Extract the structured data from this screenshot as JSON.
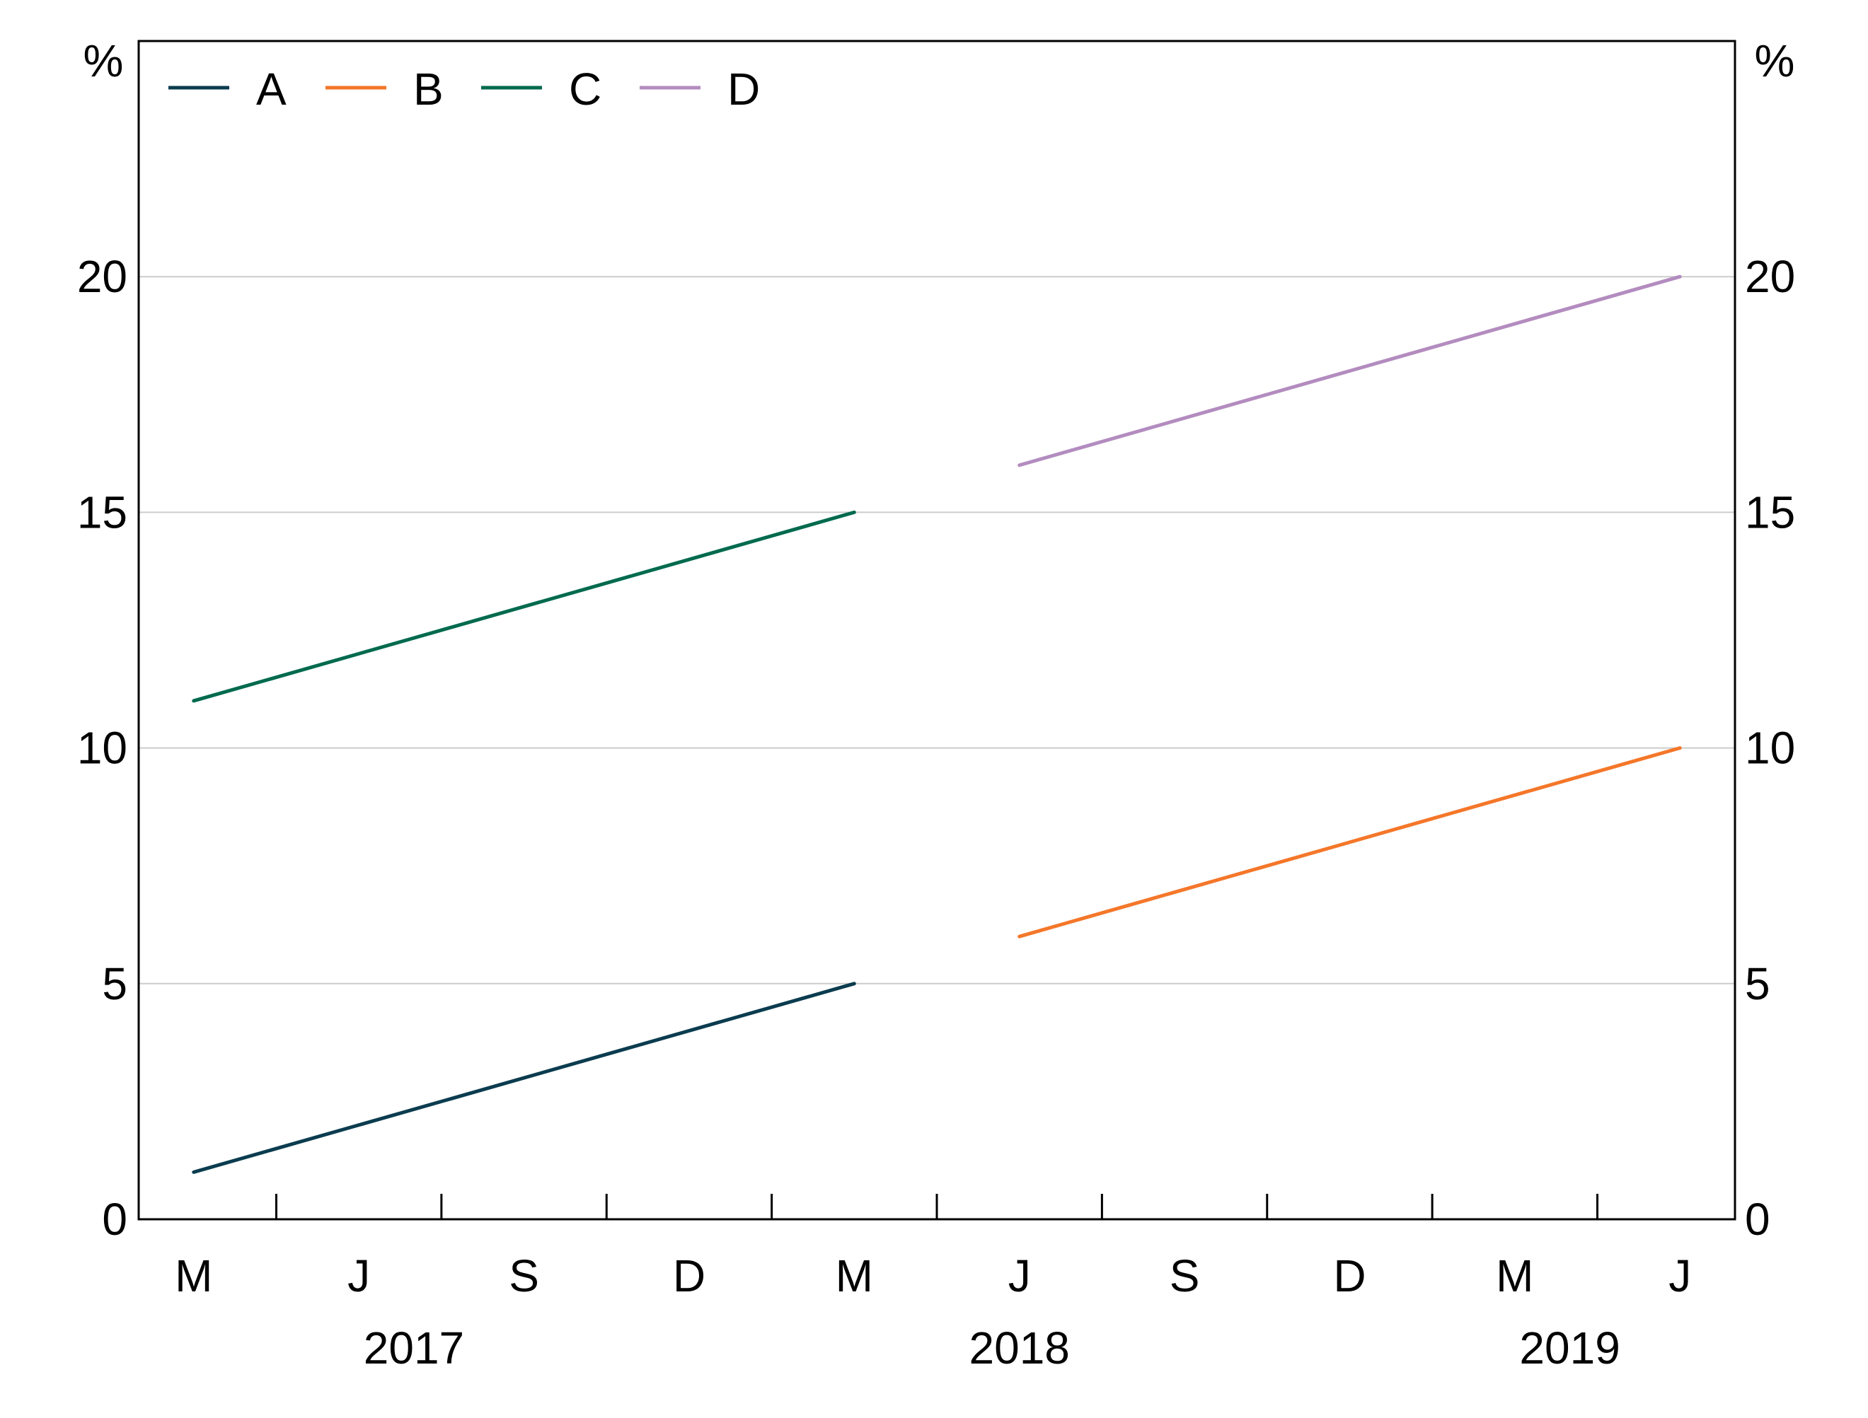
{
  "chart_data": {
    "type": "line",
    "y_unit_left": "%",
    "y_unit_right": "%",
    "ylim": [
      0,
      25
    ],
    "yticks": [
      0,
      5,
      10,
      15,
      20
    ],
    "grid": "horizontal",
    "legend_position": "top-left",
    "x_month_labels": [
      {
        "date": "2017-03",
        "label": "M"
      },
      {
        "date": "2017-06",
        "label": "J"
      },
      {
        "date": "2017-09",
        "label": "S"
      },
      {
        "date": "2017-12",
        "label": "D"
      },
      {
        "date": "2018-03",
        "label": "M"
      },
      {
        "date": "2018-06",
        "label": "J"
      },
      {
        "date": "2018-09",
        "label": "S"
      },
      {
        "date": "2018-12",
        "label": "D"
      },
      {
        "date": "2019-03",
        "label": "M"
      },
      {
        "date": "2019-06",
        "label": "J"
      }
    ],
    "x_year_labels": [
      {
        "label": "2017",
        "center_date": "2017-07"
      },
      {
        "label": "2018",
        "center_date": "2018-06"
      },
      {
        "label": "2019",
        "center_date": "2019-04"
      }
    ],
    "xlim": [
      "2017-02",
      "2019-07"
    ],
    "series": [
      {
        "name": "A",
        "color": "#0b3c4f",
        "points": [
          {
            "x": "2017-03",
            "y": 1
          },
          {
            "x": "2018-03",
            "y": 5
          }
        ]
      },
      {
        "name": "B",
        "color": "#f4772a",
        "points": [
          {
            "x": "2018-06",
            "y": 6
          },
          {
            "x": "2019-06",
            "y": 10
          }
        ]
      },
      {
        "name": "C",
        "color": "#006a4e",
        "points": [
          {
            "x": "2017-03",
            "y": 11
          },
          {
            "x": "2018-03",
            "y": 15
          }
        ]
      },
      {
        "name": "D",
        "color": "#b38cbf",
        "points": [
          {
            "x": "2018-06",
            "y": 16
          },
          {
            "x": "2019-06",
            "y": 20
          }
        ]
      }
    ]
  }
}
